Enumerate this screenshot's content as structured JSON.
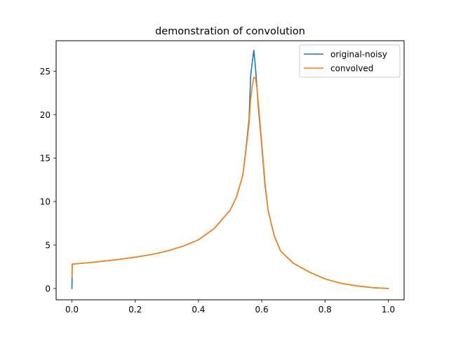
{
  "chart_data": {
    "type": "line",
    "title": "demonstration of convolution",
    "xlabel": "",
    "ylabel": "",
    "xlim": [
      -0.05,
      1.05
    ],
    "ylim": [
      -1.3,
      28.5
    ],
    "x_ticks": [
      0.0,
      0.2,
      0.4,
      0.6,
      0.8,
      1.0
    ],
    "x_tick_labels": [
      "0.0",
      "0.2",
      "0.4",
      "0.6",
      "0.8",
      "1.0"
    ],
    "y_ticks": [
      0,
      5,
      10,
      15,
      20,
      25
    ],
    "y_tick_labels": [
      "0",
      "5",
      "10",
      "15",
      "20",
      "25"
    ],
    "grid": false,
    "legend_position": "upper right",
    "series": [
      {
        "name": "original-noisy",
        "color": "#1f77b4",
        "x": [
          0.0,
          0.001,
          0.05,
          0.1,
          0.15,
          0.2,
          0.25,
          0.3,
          0.35,
          0.4,
          0.45,
          0.5,
          0.52,
          0.54,
          0.55,
          0.56,
          0.565,
          0.57,
          0.575,
          0.58,
          0.585,
          0.59,
          0.6,
          0.61,
          0.62,
          0.64,
          0.66,
          0.7,
          0.75,
          0.8,
          0.85,
          0.9,
          0.95,
          1.0
        ],
        "values": [
          0.0,
          2.8,
          2.95,
          3.15,
          3.35,
          3.6,
          3.9,
          4.3,
          4.85,
          5.6,
          6.9,
          9.0,
          10.5,
          13.0,
          16.0,
          19.5,
          24.5,
          26.0,
          27.4,
          25.5,
          23.0,
          20.5,
          16.5,
          12.0,
          9.0,
          6.0,
          4.3,
          2.9,
          1.9,
          1.1,
          0.6,
          0.3,
          0.1,
          0.0
        ]
      },
      {
        "name": "convolved",
        "color": "#ff7f0e",
        "x": [
          0.0,
          0.001,
          0.05,
          0.1,
          0.15,
          0.2,
          0.25,
          0.3,
          0.35,
          0.4,
          0.45,
          0.5,
          0.52,
          0.54,
          0.55,
          0.56,
          0.565,
          0.57,
          0.575,
          0.58,
          0.585,
          0.59,
          0.6,
          0.61,
          0.62,
          0.64,
          0.66,
          0.7,
          0.75,
          0.8,
          0.85,
          0.9,
          0.95,
          1.0
        ],
        "values": [
          1.3,
          2.8,
          2.95,
          3.15,
          3.35,
          3.6,
          3.9,
          4.3,
          4.85,
          5.6,
          6.9,
          9.0,
          10.5,
          13.0,
          15.8,
          19.0,
          21.8,
          23.3,
          24.3,
          24.2,
          23.0,
          21.0,
          16.8,
          12.3,
          9.0,
          6.0,
          4.3,
          2.9,
          1.9,
          1.1,
          0.6,
          0.3,
          0.1,
          0.0
        ]
      }
    ]
  }
}
